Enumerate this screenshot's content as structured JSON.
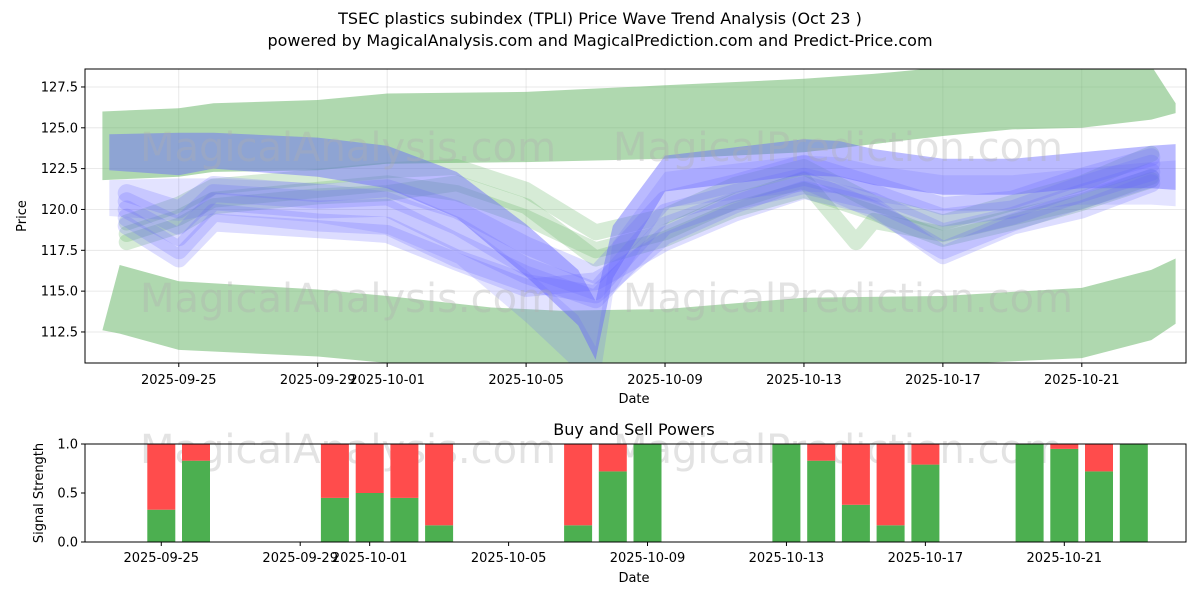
{
  "title_line1": "TSEC plastics subindex (TPLI) Price Wave Trend Analysis (Oct 23 )",
  "title_line2": "powered by MagicalAnalysis.com and MagicalPrediction.com and Predict-Price.com",
  "watermark": {
    "left": "MagicalAnalysis.com",
    "right": "MagicalPrediction.com"
  },
  "colors": {
    "green": "#4caf50",
    "red": "#ff4c4c",
    "blue": "#6666ff",
    "band_green": "#6db86d"
  },
  "chart_data": [
    {
      "type": "line",
      "title": "",
      "xlabel": "Date",
      "ylabel": "Price",
      "x_start": "2025-09-23",
      "x_range_days": [
        -0.7,
        31.0
      ],
      "ylim": [
        110.6,
        128.6
      ],
      "y_ticks": [
        112.5,
        115.0,
        117.5,
        120.0,
        122.5,
        125.0,
        127.5
      ],
      "y_tick_labels": [
        "112.5",
        "115.0",
        "117.5",
        "120.0",
        "122.5",
        "125.0",
        "127.5"
      ],
      "x_tick_days": [
        2,
        6,
        8,
        12,
        16,
        20,
        24,
        28
      ],
      "x_tick_labels": [
        "2025-09-25",
        "2025-09-29",
        "2025-10-01",
        "2025-10-05",
        "2025-10-09",
        "2025-10-13",
        "2025-10-17",
        "2025-10-21"
      ],
      "upper_band": {
        "x": [
          -0.2,
          2.0,
          3.0,
          6.0,
          8.0,
          12.0,
          16.0,
          20.0,
          22.0,
          24.0,
          26.0,
          28.0,
          30.0,
          30.7
        ],
        "top": [
          126.0,
          126.2,
          126.5,
          126.7,
          127.1,
          127.2,
          127.6,
          128.0,
          128.3,
          128.7,
          128.8,
          129.0,
          128.8,
          126.5
        ],
        "bottom": [
          121.8,
          122.0,
          122.3,
          122.4,
          122.8,
          122.9,
          123.1,
          123.5,
          124.0,
          124.5,
          124.9,
          125.0,
          125.5,
          125.9
        ]
      },
      "lower_band": {
        "x": [
          -0.2,
          0.3,
          2.0,
          6.0,
          8.0,
          11.0,
          13.0,
          16.0,
          20.0,
          24.0,
          28.0,
          30.0,
          30.7
        ],
        "top": [
          112.6,
          116.6,
          115.6,
          115.1,
          114.7,
          114.0,
          113.8,
          113.9,
          114.6,
          114.7,
          115.2,
          116.3,
          117.0
        ],
        "bottom": [
          112.6,
          112.4,
          111.4,
          111.0,
          110.6,
          110.5,
          110.5,
          110.5,
          110.5,
          110.5,
          110.9,
          112.0,
          113.0
        ]
      },
      "blue_channel": {
        "x": [
          0.0,
          2.0,
          3.0,
          6.0,
          8.0,
          10.0,
          12.0,
          13.5,
          14.0,
          14.5,
          16.0,
          18.0,
          20.0,
          21.0,
          22.0,
          24.0,
          26.0,
          28.0,
          30.0,
          30.7
        ],
        "center": [
          123.5,
          123.4,
          123.6,
          123.2,
          122.6,
          120.9,
          117.5,
          114.6,
          112.6,
          117.4,
          122.2,
          122.7,
          123.2,
          123.1,
          122.6,
          122.0,
          122.0,
          122.4,
          122.6,
          122.6
        ],
        "half_width": [
          1.1,
          1.3,
          1.1,
          1.2,
          1.3,
          1.4,
          1.6,
          1.7,
          1.8,
          1.6,
          1.1,
          1.1,
          1.1,
          1.1,
          1.1,
          1.1,
          1.1,
          1.1,
          1.3,
          1.4
        ]
      },
      "waves": [
        {
          "color": "blue",
          "x": [
            0.5,
            2.0,
            3.0,
            6.0,
            8.0,
            10.0,
            12.0,
            14.0,
            16.0,
            18.0,
            20.0,
            22.0,
            24.0,
            26.0,
            28.0,
            30.0
          ],
          "y": [
            120.5,
            119.0,
            121.0,
            120.6,
            120.8,
            119.0,
            116.5,
            115.0,
            119.8,
            121.0,
            122.0,
            121.0,
            119.5,
            120.0,
            121.5,
            122.8
          ]
        },
        {
          "color": "blue",
          "x": [
            0.5,
            2.0,
            3.0,
            6.0,
            8.0,
            10.0,
            12.0,
            14.0,
            16.0,
            18.0,
            20.0,
            22.0,
            24.0,
            26.0,
            28.0,
            30.0
          ],
          "y": [
            120.0,
            118.3,
            120.5,
            120.0,
            120.1,
            118.0,
            116.0,
            114.5,
            119.0,
            120.5,
            121.5,
            120.5,
            118.6,
            119.6,
            121.0,
            122.3
          ]
        },
        {
          "color": "blue",
          "x": [
            0.5,
            2.0,
            3.0,
            6.0,
            8.0,
            10.0,
            12.0,
            14.0,
            16.0,
            18.0,
            20.0,
            22.0,
            24.0,
            26.0,
            28.0,
            30.0
          ],
          "y": [
            119.5,
            117.5,
            119.8,
            119.2,
            119.0,
            117.0,
            115.5,
            114.8,
            118.4,
            120.3,
            121.8,
            120.0,
            117.5,
            119.2,
            120.6,
            121.9
          ]
        },
        {
          "color": "blue",
          "x": [
            0.5,
            2.0,
            3.0,
            6.0,
            8.0,
            10.0,
            12.0,
            14.0,
            16.0,
            18.0,
            20.0,
            22.0,
            24.0,
            26.0,
            28.0,
            30.0
          ],
          "y": [
            121.0,
            120.0,
            121.5,
            121.0,
            121.3,
            120.0,
            117.8,
            116.0,
            120.6,
            121.6,
            122.8,
            121.5,
            120.2,
            120.6,
            122.0,
            123.2
          ]
        },
        {
          "color": "blue",
          "x": [
            0.5,
            2.0,
            3.0,
            6.0,
            8.0,
            10.0,
            12.0,
            14.0,
            16.0,
            18.0,
            20.0,
            22.0,
            24.0,
            26.0,
            28.0,
            30.0
          ],
          "y": [
            119.0,
            117.0,
            119.2,
            118.8,
            118.5,
            116.8,
            115.2,
            115.6,
            118.0,
            119.8,
            121.2,
            120.2,
            117.2,
            119.0,
            120.0,
            121.6
          ]
        },
        {
          "color": "green",
          "x": [
            0.5,
            2.0,
            3.0,
            6.0,
            8.0,
            10.0,
            12.0,
            14.0,
            16.0,
            18.0,
            20.0,
            21.5,
            22.0,
            24.0,
            26.0,
            28.0,
            30.0
          ],
          "y": [
            118.5,
            119.5,
            120.6,
            121.2,
            121.6,
            121.0,
            119.5,
            117.5,
            118.6,
            120.5,
            121.8,
            118.0,
            119.3,
            118.5,
            119.5,
            120.5,
            122.0
          ]
        },
        {
          "color": "green",
          "x": [
            0.5,
            2.0,
            3.0,
            6.0,
            8.0,
            10.0,
            12.0,
            14.0,
            16.0,
            18.0,
            20.0,
            22.0,
            24.0,
            26.0,
            28.0,
            30.0
          ],
          "y": [
            119.2,
            120.3,
            121.4,
            122.0,
            122.4,
            122.6,
            121.2,
            118.6,
            119.6,
            121.5,
            122.6,
            120.4,
            119.2,
            120.4,
            121.6,
            123.4
          ]
        },
        {
          "color": "green",
          "x": [
            0.5,
            2.0,
            3.0,
            6.0,
            8.0,
            10.0,
            12.0,
            14.0,
            16.0,
            18.0,
            20.0,
            22.0,
            24.0,
            26.0,
            28.0,
            30.0
          ],
          "y": [
            118.0,
            119.0,
            120.2,
            120.8,
            121.0,
            121.6,
            120.2,
            117.0,
            118.2,
            120.0,
            121.2,
            119.8,
            118.2,
            119.2,
            120.4,
            121.8
          ]
        }
      ]
    },
    {
      "type": "bar",
      "title": "Buy and Sell Powers",
      "xlabel": "Date",
      "ylabel": "Signal Strength",
      "ylim": [
        0,
        1
      ],
      "y_ticks": [
        0.0,
        0.5,
        1.0
      ],
      "y_tick_labels": [
        "0.0",
        "0.5",
        "1.0"
      ],
      "x_tick_days": [
        2,
        6,
        8,
        12,
        16,
        20,
        24,
        28
      ],
      "x_tick_labels": [
        "2025-09-25",
        "2025-09-29",
        "2025-10-01",
        "2025-10-05",
        "2025-10-09",
        "2025-10-13",
        "2025-10-17",
        "2025-10-21"
      ],
      "series": [
        {
          "name": "Buy",
          "color": "green"
        },
        {
          "name": "Sell",
          "color": "red"
        }
      ],
      "bars": [
        {
          "date": "2025-09-25",
          "day": 2,
          "buy": 0.33
        },
        {
          "date": "2025-09-26",
          "day": 3,
          "buy": 0.83
        },
        {
          "date": "2025-09-30",
          "day": 7,
          "buy": 0.45
        },
        {
          "date": "2025-10-01",
          "day": 8,
          "buy": 0.5
        },
        {
          "date": "2025-10-02",
          "day": 9,
          "buy": 0.45
        },
        {
          "date": "2025-10-03",
          "day": 10,
          "buy": 0.17
        },
        {
          "date": "2025-10-07",
          "day": 14,
          "buy": 0.17
        },
        {
          "date": "2025-10-08",
          "day": 15,
          "buy": 0.72
        },
        {
          "date": "2025-10-09",
          "day": 16,
          "buy": 1.0
        },
        {
          "date": "2025-10-13",
          "day": 20,
          "buy": 1.0
        },
        {
          "date": "2025-10-14",
          "day": 21,
          "buy": 0.83
        },
        {
          "date": "2025-10-15",
          "day": 22,
          "buy": 0.38
        },
        {
          "date": "2025-10-16",
          "day": 23,
          "buy": 0.17
        },
        {
          "date": "2025-10-17",
          "day": 24,
          "buy": 0.79
        },
        {
          "date": "2025-10-20",
          "day": 27,
          "buy": 1.0
        },
        {
          "date": "2025-10-21",
          "day": 28,
          "buy": 0.95
        },
        {
          "date": "2025-10-22",
          "day": 29,
          "buy": 0.72
        },
        {
          "date": "2025-10-23",
          "day": 30,
          "buy": 1.0
        }
      ]
    }
  ]
}
